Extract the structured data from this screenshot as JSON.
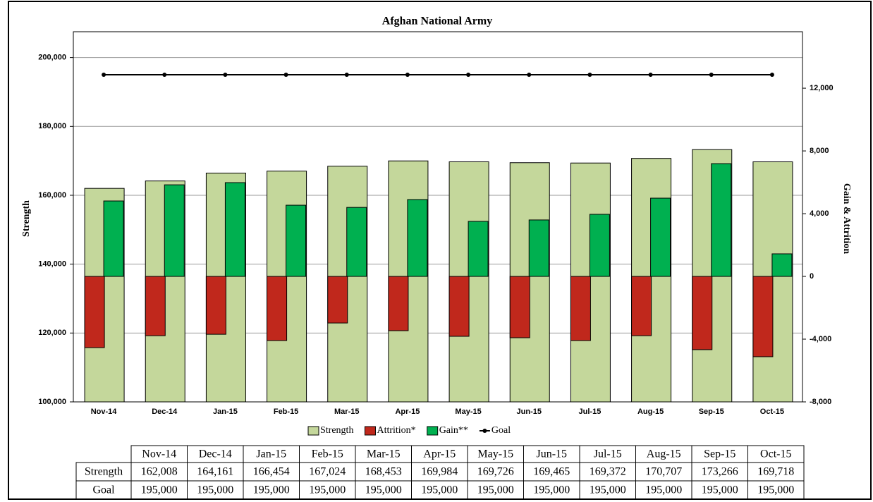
{
  "chart_data": {
    "type": "bar",
    "title": "Afghan National Army",
    "y_label": "Strength",
    "y2_label": "Gain & Attrition",
    "categories": [
      "Nov-14",
      "Dec-14",
      "Jan-15",
      "Feb-15",
      "Mar-15",
      "Apr-15",
      "May-15",
      "Jun-15",
      "Jul-15",
      "Aug-15",
      "Sep-15",
      "Oct-15"
    ],
    "series": [
      {
        "name": "Strength",
        "type": "bar",
        "axis": "y",
        "color": "#c4d79b",
        "values": [
          162008,
          164161,
          166454,
          167024,
          168453,
          169984,
          169726,
          169465,
          169372,
          170707,
          173266,
          169718
        ],
        "value_labels": [
          "162,008",
          "164,161",
          "166,454",
          "167,024",
          "168,453",
          "169,984",
          "169,726",
          "169,465",
          "169,372",
          "170,707",
          "173,266",
          "169,718"
        ]
      },
      {
        "name": "Attrition*",
        "type": "bar",
        "axis": "y2",
        "color": "#c0281c",
        "values": [
          -4540,
          -3780,
          -3690,
          -4090,
          -2970,
          -3460,
          -3820,
          -3910,
          -4090,
          -3780,
          -4670,
          -5120
        ]
      },
      {
        "name": "Gain**",
        "type": "bar",
        "axis": "y2",
        "color": "#00b050",
        "values": [
          4810,
          5840,
          5980,
          4540,
          4400,
          4900,
          3510,
          3600,
          3960,
          4990,
          7190,
          1440
        ]
      },
      {
        "name": "Goal",
        "type": "line",
        "axis": "y",
        "color": "#000000",
        "values": [
          195000,
          195000,
          195000,
          195000,
          195000,
          195000,
          195000,
          195000,
          195000,
          195000,
          195000,
          195000
        ],
        "value_labels": [
          "195,000",
          "195,000",
          "195,000",
          "195,000",
          "195,000",
          "195,000",
          "195,000",
          "195,000",
          "195,000",
          "195,000",
          "195,000",
          "195,000"
        ]
      }
    ],
    "ylim": [
      100000,
      207500
    ],
    "yticks": [
      {
        "value": 100000,
        "label": "100,000"
      },
      {
        "value": 120000,
        "label": "120,000"
      },
      {
        "value": 140000,
        "label": "140,000"
      },
      {
        "value": 160000,
        "label": "160,000"
      },
      {
        "value": 180000,
        "label": "180,000"
      },
      {
        "value": 200000,
        "label": "200,000"
      }
    ],
    "y2lim": [
      -8000,
      15600
    ],
    "y2ticks": [
      {
        "value": -8000,
        "label": "-8,000"
      },
      {
        "value": -4000,
        "label": "-4,000"
      },
      0,
      {
        "value": 4000,
        "label": "4,000"
      },
      {
        "value": 8000,
        "label": "8,000"
      },
      {
        "value": 12000,
        "label": "12,000"
      }
    ],
    "grid": true,
    "legend": "bottom"
  }
}
